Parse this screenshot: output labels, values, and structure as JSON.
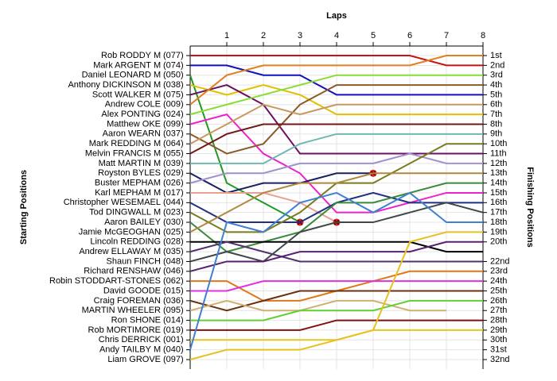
{
  "chart_data": {
    "type": "lap",
    "title": "Laps",
    "y_label": "Starting Positions",
    "y2_label": "Finishing Positions",
    "x": [
      0,
      1,
      2,
      3,
      4,
      5,
      6,
      7,
      8
    ],
    "xlim": [
      0,
      8
    ],
    "xticks": [
      1,
      2,
      3,
      4,
      5,
      6,
      7,
      8
    ],
    "ylim": [
      1,
      32
    ],
    "grid": true,
    "y2ticks": [
      {
        "value": 1,
        "label": "1st"
      },
      {
        "value": 2,
        "label": "2nd"
      },
      {
        "value": 3,
        "label": "3rd"
      },
      {
        "value": 4,
        "label": "4th"
      },
      {
        "value": 5,
        "label": "5th"
      },
      {
        "value": 6,
        "label": "6th"
      },
      {
        "value": 7,
        "label": "7th"
      },
      {
        "value": 8,
        "label": "8th"
      },
      {
        "value": 9,
        "label": "9th"
      },
      {
        "value": 10,
        "label": "10th"
      },
      {
        "value": 11,
        "label": "11th"
      },
      {
        "value": 12,
        "label": "12th"
      },
      {
        "value": 13,
        "label": "13th"
      },
      {
        "value": 14,
        "label": "14th"
      },
      {
        "value": 15,
        "label": "15th"
      },
      {
        "value": 16,
        "label": "16th"
      },
      {
        "value": 17,
        "label": "17th"
      },
      {
        "value": 18,
        "label": "18th"
      },
      {
        "value": 19,
        "label": "19th"
      },
      {
        "value": 20,
        "label": "20th"
      },
      {
        "value": 22,
        "label": "22nd"
      },
      {
        "value": 23,
        "label": "23rd"
      },
      {
        "value": 24,
        "label": "24th"
      },
      {
        "value": 25,
        "label": "25th"
      },
      {
        "value": 26,
        "label": "26th"
      },
      {
        "value": 27,
        "label": "27th"
      },
      {
        "value": 28,
        "label": "28th"
      },
      {
        "value": 29,
        "label": "29th"
      },
      {
        "value": 30,
        "label": "30th"
      },
      {
        "value": 31,
        "label": "31st"
      },
      {
        "value": 32,
        "label": "32nd"
      }
    ],
    "retired_marker_color": "#dd2222",
    "series": [
      {
        "name": "Rob RODDY",
        "class": "M",
        "number": "(077)",
        "color": "#cc1111",
        "values": [
          1,
          1,
          1,
          1,
          1,
          1,
          1,
          2,
          2
        ]
      },
      {
        "name": "Mark ARGENT",
        "class": "M",
        "number": "(074)",
        "color": "#1111bb",
        "values": [
          2,
          2,
          3,
          3,
          5,
          5,
          5,
          5,
          5
        ]
      },
      {
        "name": "Daniel LEONARD",
        "class": "M",
        "number": "(050)",
        "color": "#229922",
        "values": [
          3,
          14,
          16,
          18,
          null,
          null,
          null,
          null,
          null
        ]
      },
      {
        "name": "Anthony DICKINSON",
        "class": "M",
        "number": "(038)",
        "color": "#e0c000",
        "values": [
          4,
          5,
          4,
          5,
          7,
          7,
          7,
          7,
          7
        ]
      },
      {
        "name": "Scott WALKER",
        "class": "M",
        "number": "(075)",
        "color": "#6a1060",
        "values": [
          5,
          4,
          6,
          11,
          11,
          11,
          11,
          11,
          11
        ]
      },
      {
        "name": "Andrew COLE",
        "number": "(009)",
        "color": "#e08020",
        "values": [
          6,
          3,
          2,
          2,
          2,
          2,
          2,
          1,
          1
        ]
      },
      {
        "name": "Alex PONTING",
        "number": "(024)",
        "color": "#88dd33",
        "values": [
          7,
          6,
          5,
          4,
          3,
          3,
          3,
          3,
          3
        ]
      },
      {
        "name": "Matthew OKE",
        "number": "(099)",
        "color": "#ee22cc",
        "values": [
          8,
          7,
          11,
          13,
          17,
          17,
          16,
          15,
          15
        ]
      },
      {
        "name": "Aaron WEARN",
        "number": "(037)",
        "color": "#8b5a2b",
        "values": [
          9,
          11,
          10,
          6,
          4,
          4,
          4,
          4,
          4
        ]
      },
      {
        "name": "Mark REDDING",
        "class": "M",
        "number": "(064)",
        "color": "#c89860",
        "values": [
          10,
          8,
          6,
          7,
          6,
          6,
          6,
          6,
          6
        ]
      },
      {
        "name": "Melvin FRANCIS",
        "class": "M",
        "number": "(055)",
        "color": "#701818",
        "values": [
          11,
          9,
          8,
          8,
          8,
          8,
          8,
          8,
          8
        ]
      },
      {
        "name": "Matt MARTIN",
        "class": "M",
        "number": "(039)",
        "color": "#70b8b0",
        "values": [
          12,
          12,
          12,
          10,
          9,
          9,
          9,
          9,
          9
        ]
      },
      {
        "name": "Royston BYLES",
        "number": "(029)",
        "color": "#1a2060",
        "values": [
          13,
          15,
          14,
          14,
          13,
          13,
          null,
          null,
          null
        ]
      },
      {
        "name": "Buster MEPHAM",
        "number": "(026)",
        "color": "#a090d0",
        "values": [
          14,
          13,
          13,
          12,
          12,
          12,
          11,
          12,
          12
        ]
      },
      {
        "name": "Karl MEPHAM",
        "class": "M",
        "number": "(017)",
        "color": "#e8a090",
        "values": [
          15,
          15,
          15,
          16,
          18,
          null,
          null,
          null,
          null
        ]
      },
      {
        "name": "Christopher WESEMAEL",
        "number": "(044)",
        "color": "#203080",
        "values": [
          16,
          18,
          18,
          18,
          16,
          15,
          16,
          16,
          16
        ]
      },
      {
        "name": "Tod DINGWALL",
        "class": "M",
        "number": "(023)",
        "color": "#7a7a20",
        "values": [
          17,
          19,
          19,
          17,
          14,
          14,
          12,
          10,
          10
        ]
      },
      {
        "name": "Aaron BAILEY",
        "number": "(030)",
        "color": "#3a8a3a",
        "values": [
          18,
          21,
          20,
          19,
          16,
          16,
          15,
          14,
          14
        ]
      },
      {
        "name": "Jamie McGEOGHAN",
        "number": "(025)",
        "color": "#b08840",
        "values": [
          19,
          17,
          15,
          14,
          14,
          13,
          13,
          13,
          13
        ]
      },
      {
        "name": "Lincoln REDDING",
        "number": "(028)",
        "color": "#000000",
        "values": [
          20,
          20,
          20,
          20,
          20,
          20,
          20,
          21,
          21
        ]
      },
      {
        "name": "Andrew ELLAWAY",
        "class": "M",
        "number": "(035)",
        "color": "#553070",
        "values": [
          21,
          20,
          21,
          22,
          22,
          22,
          22,
          22,
          22
        ]
      },
      {
        "name": "Shaun FINCH",
        "number": "(048)",
        "color": "#404848",
        "values": [
          22,
          21,
          22,
          19,
          18,
          18,
          17,
          16,
          17
        ]
      },
      {
        "name": "Richard RENSHAW",
        "number": "(046)",
        "color": "#5a2070",
        "values": [
          23,
          22,
          22,
          21,
          21,
          21,
          21,
          20,
          20
        ]
      },
      {
        "name": "Robin STODDART-STONES",
        "number": "(062)",
        "color": "#e07818",
        "values": [
          24,
          24,
          26,
          26,
          25,
          24,
          23,
          23,
          23
        ]
      },
      {
        "name": "David GOODE",
        "number": "(015)",
        "color": "#e030e0",
        "values": [
          25,
          25,
          24,
          24,
          24,
          24,
          24,
          24,
          24
        ]
      },
      {
        "name": "Craig FOREMAN",
        "number": "(036)",
        "color": "#6a3010",
        "values": [
          26,
          27,
          26,
          25,
          25,
          25,
          25,
          25,
          25
        ]
      },
      {
        "name": "MARTIN WHEELER",
        "number": "(095)",
        "color": "#d0b070",
        "values": [
          27,
          26,
          27,
          27,
          26,
          26,
          27,
          27,
          null
        ]
      },
      {
        "name": "Ron SHONE",
        "number": "(014)",
        "color": "#60d030",
        "values": [
          28,
          28,
          28,
          27,
          27,
          27,
          26,
          26,
          26
        ]
      },
      {
        "name": "Rob MORTIMORE",
        "number": "(019)",
        "color": "#801010",
        "values": [
          29,
          29,
          29,
          29,
          28,
          28,
          28,
          28,
          28
        ]
      },
      {
        "name": "Chris DERRICK",
        "number": "(001)",
        "color": "#e0c820",
        "values": [
          30,
          30,
          30,
          30,
          30,
          29,
          29,
          29,
          29
        ]
      },
      {
        "name": "Andy TAILBY",
        "class": "M",
        "number": "(040)",
        "color": "#4080d0",
        "values": [
          31,
          18,
          19,
          16,
          15,
          17,
          15,
          18,
          18
        ]
      },
      {
        "name": "Liam GROVE",
        "number": "(097)",
        "color": "#e8c020",
        "values": [
          32,
          31,
          31,
          31,
          30,
          29,
          20,
          19,
          19
        ]
      }
    ]
  }
}
